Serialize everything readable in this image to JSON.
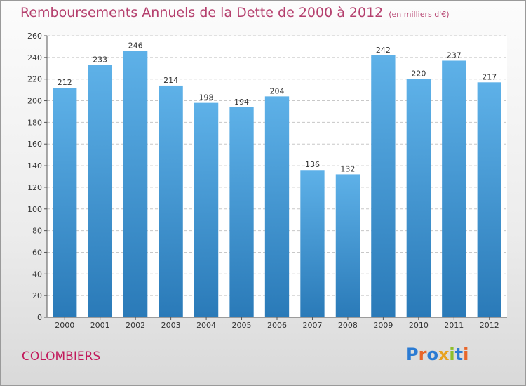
{
  "chart_data": {
    "type": "bar",
    "title": "Remboursements Annuels de la Dette de 2000 à 2012",
    "unit_note": "(en milliers d'€)",
    "categories": [
      "2000",
      "2001",
      "2002",
      "2003",
      "2004",
      "2005",
      "2006",
      "2007",
      "2008",
      "2009",
      "2010",
      "2011",
      "2012"
    ],
    "values": [
      212,
      233,
      246,
      214,
      198,
      194,
      204,
      136,
      132,
      242,
      220,
      237,
      217
    ],
    "ylim": [
      0,
      260
    ],
    "yticks": [
      0,
      20,
      40,
      60,
      80,
      100,
      120,
      140,
      160,
      180,
      200,
      220,
      240,
      260
    ],
    "grid": true,
    "bar_color_top": "#5eb1e8",
    "bar_color_bottom": "#2a7ab8",
    "title_color": "#b5406e"
  },
  "footer": {
    "city": "COLOMBIERS",
    "logo_text": "Proxiti",
    "logo_colors": [
      "#2b7bd3",
      "#e8662a",
      "#2b7bd3",
      "#e8a21f",
      "#8fbf2a",
      "#2b7bd3",
      "#e8662a"
    ]
  }
}
